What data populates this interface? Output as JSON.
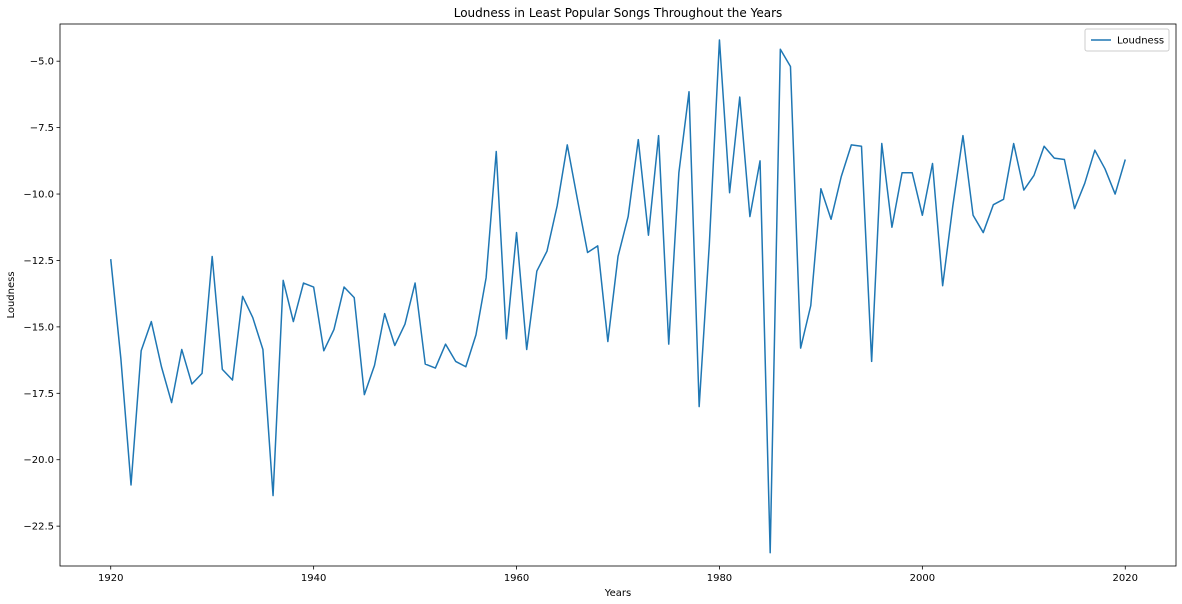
{
  "chart_data": {
    "type": "line",
    "title": "Loudness in Least Popular Songs Throughout the Years",
    "xlabel": "Years",
    "ylabel": "Loudness",
    "xlim": [
      1915,
      2025
    ],
    "ylim": [
      -24.0,
      -3.6
    ],
    "xticks": [
      1920,
      1940,
      1960,
      1980,
      2000,
      2020
    ],
    "yticks": [
      -22.5,
      -20.0,
      -17.5,
      -15.0,
      -12.5,
      -10.0,
      -7.5,
      -5.0
    ],
    "ytick_labels": [
      "−22.5",
      "−20.0",
      "−17.5",
      "−15.0",
      "−12.5",
      "−10.0",
      "−7.5",
      "−5.0"
    ],
    "grid": false,
    "legend_position": "top-right",
    "series": [
      {
        "name": "Loudness",
        "color": "#1f77b4",
        "x": [
          1920,
          1921,
          1922,
          1923,
          1924,
          1925,
          1926,
          1927,
          1928,
          1929,
          1930,
          1931,
          1932,
          1933,
          1934,
          1935,
          1936,
          1937,
          1938,
          1939,
          1940,
          1941,
          1942,
          1943,
          1944,
          1945,
          1946,
          1947,
          1948,
          1949,
          1950,
          1951,
          1952,
          1953,
          1954,
          1955,
          1956,
          1957,
          1958,
          1959,
          1960,
          1961,
          1962,
          1963,
          1964,
          1965,
          1966,
          1967,
          1968,
          1969,
          1970,
          1971,
          1972,
          1973,
          1974,
          1975,
          1976,
          1977,
          1978,
          1979,
          1980,
          1981,
          1982,
          1983,
          1984,
          1985,
          1986,
          1987,
          1988,
          1989,
          1990,
          1991,
          1992,
          1993,
          1994,
          1995,
          1996,
          1997,
          1998,
          1999,
          2000,
          2001,
          2002,
          2003,
          2004,
          2005,
          2006,
          2007,
          2008,
          2009,
          2010,
          2011,
          2012,
          2013,
          2014,
          2015,
          2016,
          2017,
          2018,
          2019,
          2020
        ],
        "y": [
          -12.45,
          -16.2,
          -20.95,
          -15.9,
          -14.8,
          -16.5,
          -17.85,
          -15.85,
          -17.15,
          -16.75,
          -12.35,
          -16.6,
          -17.0,
          -13.85,
          -14.65,
          -15.85,
          -21.35,
          -13.25,
          -14.8,
          -13.35,
          -13.5,
          -15.9,
          -15.1,
          -13.5,
          -13.9,
          -17.55,
          -16.45,
          -14.5,
          -15.7,
          -14.9,
          -13.35,
          -16.4,
          -16.55,
          -15.65,
          -16.3,
          -16.5,
          -15.3,
          -13.15,
          -8.4,
          -15.45,
          -11.45,
          -15.85,
          -12.9,
          -12.15,
          -10.45,
          -8.15,
          -10.2,
          -12.2,
          -11.95,
          -15.55,
          -12.35,
          -10.85,
          -7.95,
          -11.55,
          -7.8,
          -15.65,
          -9.2,
          -6.15,
          -18.0,
          -11.9,
          -4.2,
          -9.95,
          -6.35,
          -10.85,
          -8.75,
          -23.5,
          -4.55,
          -5.2,
          -15.8,
          -14.2,
          -9.8,
          -10.95,
          -9.35,
          -8.15,
          -8.2,
          -16.3,
          -8.1,
          -11.25,
          -9.2,
          -9.2,
          -10.8,
          -8.85,
          -13.45,
          -10.45,
          -7.8,
          -10.8,
          -11.45,
          -10.4,
          -10.2,
          -8.1,
          -9.85,
          -9.3,
          -8.2,
          -8.65,
          -8.7,
          -10.55,
          -9.6,
          -8.35,
          -9.05,
          -10.0,
          -8.7
        ]
      }
    ]
  }
}
